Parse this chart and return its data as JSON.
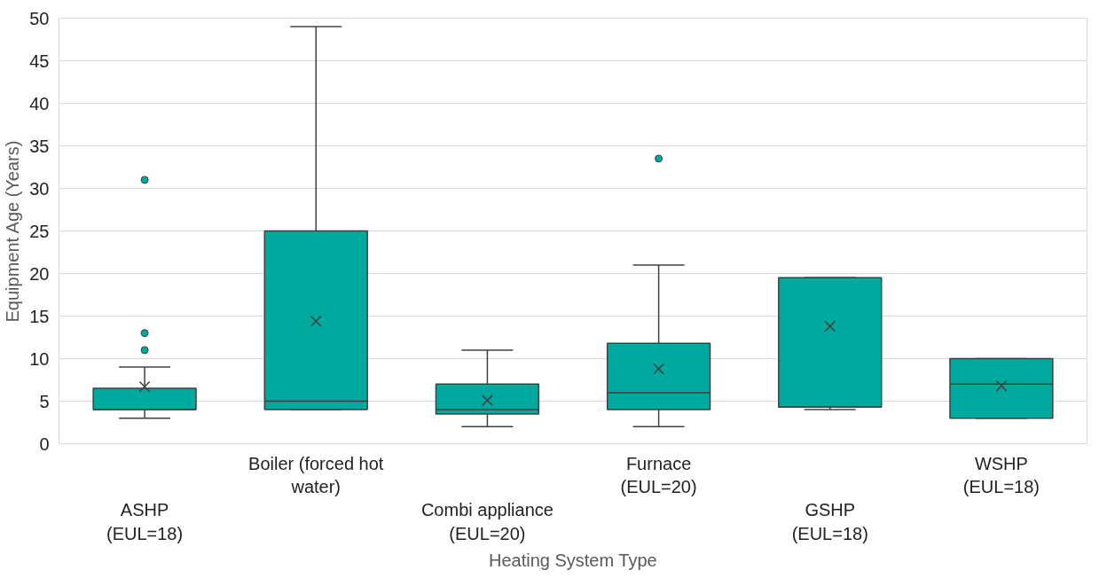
{
  "chart_data": {
    "type": "box",
    "xlabel": "Heating System Type",
    "ylabel": "Equipment Age (Years)",
    "categories": [
      "ASHP\n(EUL=18)",
      "Boiler (forced hot\nwater)",
      "Combi appliance\n(EUL=20)",
      "Furnace\n(EUL=20)",
      "GSHP\n(EUL=18)",
      "WSHP\n(EUL=18)"
    ],
    "series": [
      {
        "color": "#00a99d",
        "boxes": [
          {
            "low": 3,
            "q1": 4,
            "median": 4,
            "q3": 6.5,
            "high": 9,
            "mean": 6.7,
            "outliers": [
              31,
              13,
              11
            ]
          },
          {
            "low": 4,
            "q1": 4,
            "median": 5,
            "q3": 25,
            "high": 49,
            "mean": 14.4
          },
          {
            "low": 2,
            "q1": 3.5,
            "median": 4,
            "q3": 7,
            "high": 11,
            "mean": 5.1
          },
          {
            "low": 2,
            "q1": 4,
            "median": 6,
            "q3": 11.8,
            "high": 21,
            "mean": 8.8,
            "outliers": [
              33.5
            ]
          },
          {
            "low": 4,
            "q1": 4.3,
            "median": 4.3,
            "q3": 19.5,
            "high": 19.5,
            "mean": 13.8
          },
          {
            "low": 3,
            "q1": 3,
            "median": 7,
            "q3": 10,
            "high": 10,
            "mean": 6.8
          }
        ]
      }
    ],
    "ylim": [
      0,
      50
    ],
    "yticks": [
      0,
      5,
      10,
      15,
      20,
      25,
      30,
      35,
      40,
      45,
      50
    ],
    "grid": "y"
  }
}
